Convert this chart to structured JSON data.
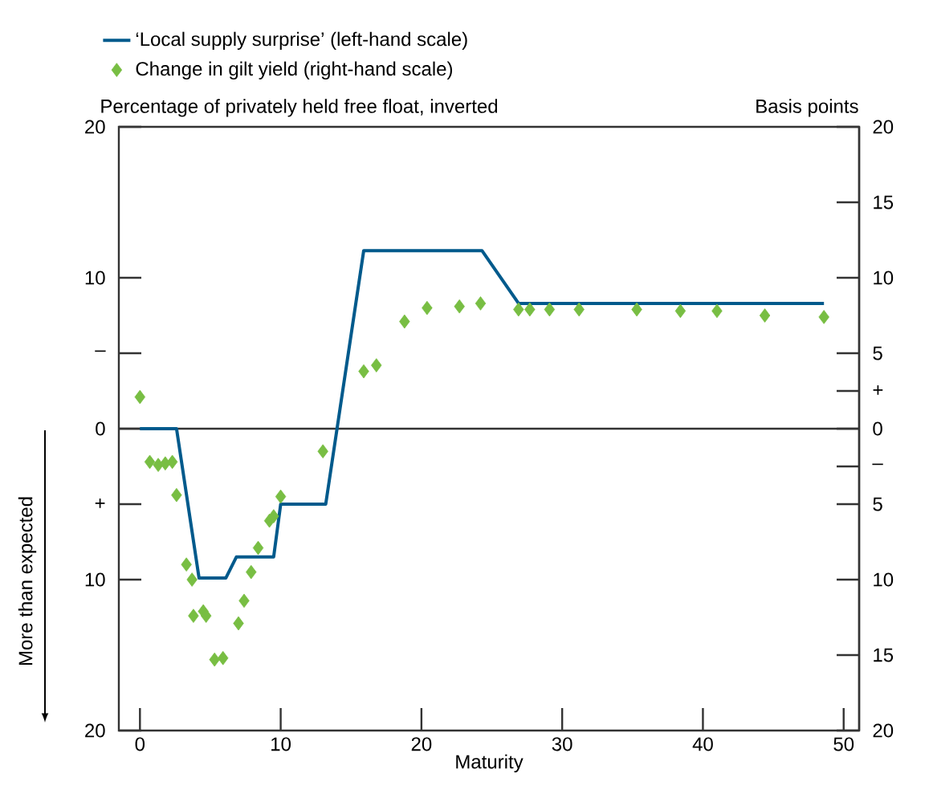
{
  "chart_data": {
    "type": "line",
    "ylabel": "Percentage of privately held free float, inverted",
    "y2label": "Basis points",
    "xlabel": "Maturity",
    "annotations": [
      "More than expected"
    ],
    "xlim": [
      -1.5,
      51.1
    ],
    "xticks": [
      0,
      10,
      20,
      30,
      40,
      50
    ],
    "ylim": [
      -20,
      20
    ],
    "yticks": [
      20,
      10,
      {
        "value": 5,
        "label": "–"
      },
      0,
      {
        "value": -5,
        "label": "+"
      },
      {
        "value": -10,
        "label": "10"
      },
      {
        "value": -20,
        "label": "20"
      }
    ],
    "y2lim": [
      -20,
      20
    ],
    "y2ticks": [
      20,
      15,
      10,
      5,
      {
        "value": 2.5,
        "label": "+"
      },
      0,
      {
        "value": -2.5,
        "label": "–"
      },
      {
        "value": -5,
        "label": "5"
      },
      {
        "value": -10,
        "label": "10"
      },
      {
        "value": -15,
        "label": "15"
      },
      {
        "value": -20,
        "label": "20"
      }
    ],
    "ref_lines": [
      {
        "axis": "y",
        "value": 0,
        "color": "#333333"
      }
    ],
    "legend": "top left",
    "grid": false,
    "series": [
      {
        "name": "‘Local supply surprise’ (left-hand scale)",
        "color": "#005a8c",
        "line_style": "solid",
        "marker": "none",
        "x": [
          0,
          2.6,
          4.2,
          6.1,
          6.85,
          9.5,
          10,
          13.2,
          15.9,
          24.3,
          26.9,
          48.6
        ],
        "values": [
          0,
          0,
          -9.9,
          -9.9,
          -8.5,
          -8.5,
          -5,
          -5,
          11.8,
          11.8,
          8.3,
          8.3
        ]
      },
      {
        "name": "Change in gilt yield (right-hand scale)",
        "type": "scatter",
        "axis": "y2",
        "color": "#78be43",
        "marker": "diamond",
        "x": [
          0,
          0.7,
          1.3,
          1.8,
          2.3,
          2.6,
          3.3,
          3.7,
          3.8,
          4.5,
          4.7,
          5.3,
          5.9,
          7.0,
          7.4,
          7.9,
          8.4,
          9.2,
          9.5,
          10.0,
          13.0,
          15.9,
          16.8,
          18.8,
          20.4,
          22.7,
          24.2,
          26.9,
          27.7,
          29.1,
          31.2,
          35.3,
          38.4,
          41.0,
          44.4,
          48.6
        ],
        "values": [
          2.1,
          -2.2,
          -2.4,
          -2.3,
          -2.2,
          -4.4,
          -9.0,
          -10.0,
          -12.4,
          -12.1,
          -12.4,
          -15.3,
          -15.2,
          -12.9,
          -11.4,
          -9.5,
          -7.9,
          -6.1,
          -5.8,
          -4.5,
          -1.5,
          3.8,
          4.2,
          7.1,
          8.0,
          8.1,
          8.3,
          7.9,
          7.9,
          7.9,
          7.9,
          7.9,
          7.8,
          7.8,
          7.5,
          7.4
        ]
      }
    ]
  }
}
